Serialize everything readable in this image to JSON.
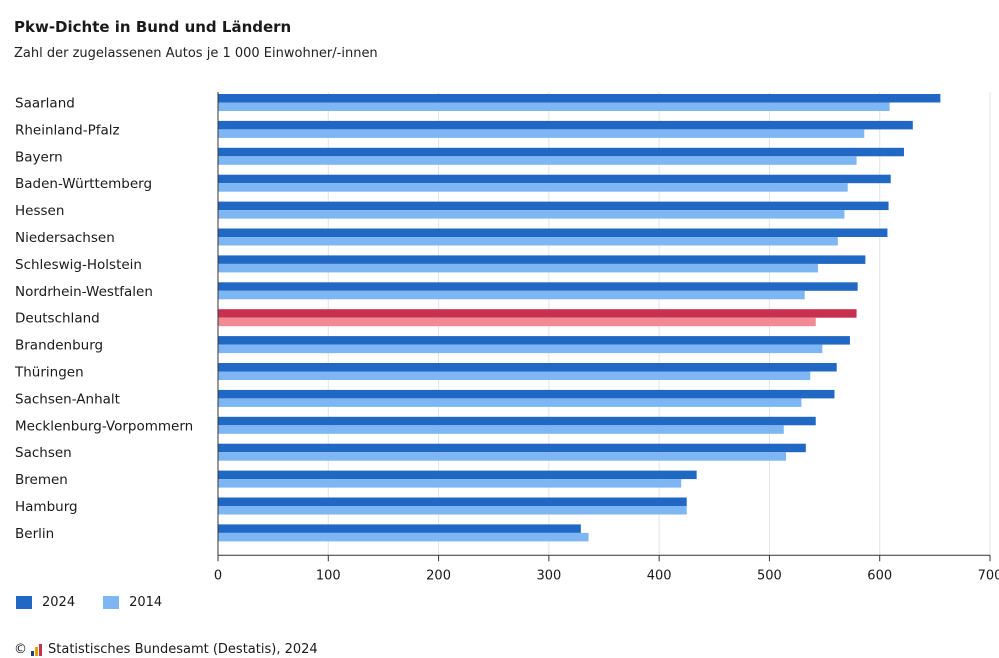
{
  "chart_data": {
    "type": "bar",
    "orientation": "horizontal",
    "title": "Pkw-Dichte in Bund und Ländern",
    "subtitle": "Zahl der zugelassenen Autos je 1 000 Einwohner/-innen",
    "categories": [
      "Saarland",
      "Rheinland-Pfalz",
      "Bayern",
      "Baden-Württemberg",
      "Hessen",
      "Niedersachsen",
      "Schleswig-Holstein",
      "Nordrhein-Westfalen",
      "Deutschland",
      "Brandenburg",
      "Thüringen",
      "Sachsen-Anhalt",
      "Mecklenburg-Vorpommern",
      "Sachsen",
      "Bremen",
      "Hamburg",
      "Berlin"
    ],
    "highlight_category": "Deutschland",
    "series": [
      {
        "name": "2024",
        "color": "#2168c4",
        "values": [
          655,
          630,
          622,
          610,
          608,
          607,
          587,
          580,
          579,
          573,
          561,
          559,
          542,
          533,
          434,
          425,
          329
        ]
      },
      {
        "name": "2014",
        "color": "#7db6f2",
        "values": [
          609,
          586,
          579,
          571,
          568,
          562,
          544,
          532,
          542,
          548,
          537,
          529,
          513,
          515,
          420,
          425,
          336
        ]
      }
    ],
    "highlight_colors": {
      "2024": "#c8304f",
      "2014": "#f28a96"
    },
    "xlim": [
      0,
      700
    ],
    "xticks": [
      "0",
      "100",
      "200",
      "300",
      "400",
      "500",
      "600",
      "700"
    ],
    "grid": true,
    "legend": "bottom-left"
  },
  "source": {
    "copyright": "©",
    "text": "Statistisches Bundesamt (Destatis), 2024"
  }
}
